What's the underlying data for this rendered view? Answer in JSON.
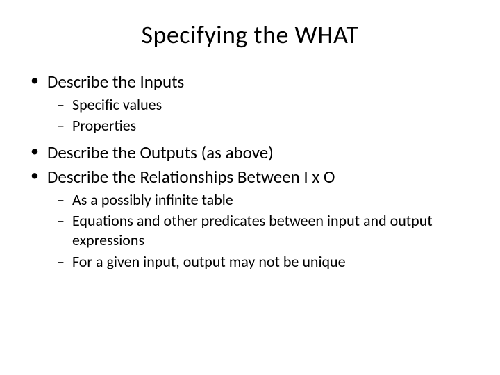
{
  "slide": {
    "title": "Specifying the WHAT",
    "background_color": "#ffffff",
    "text_color": "#000000",
    "font_family": "Calibri",
    "title_fontsize": 36,
    "level1_fontsize": 25,
    "level2_fontsize": 22,
    "bullets": [
      {
        "text": "Describe the Inputs",
        "children": [
          {
            "text": "Specific values"
          },
          {
            "text": "Properties"
          }
        ]
      },
      {
        "text": "Describe the Outputs (as above)",
        "children": []
      },
      {
        "text": "Describe the Relationships Between I x O",
        "children": [
          {
            "text": "As a possibly infinite table"
          },
          {
            "text": "Equations and other predicates between input and output expressions"
          },
          {
            "text": "For a given input, output may not be unique"
          }
        ]
      }
    ]
  }
}
